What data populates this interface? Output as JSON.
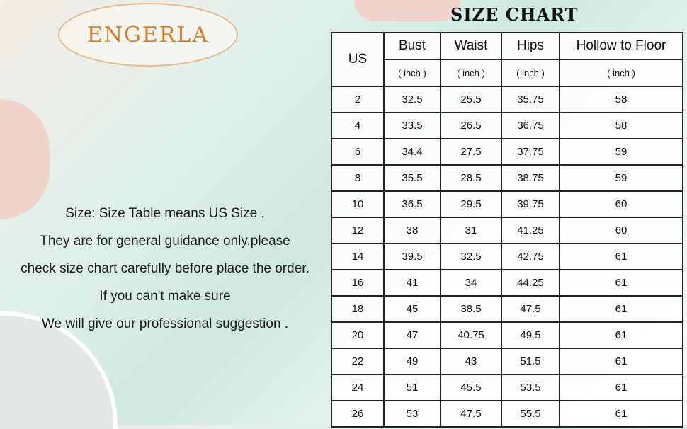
{
  "brand": "ENGERLA",
  "title": "SIZE CHART",
  "notes": [
    "Size: Size Table means US Size ,",
    "They are for general guidance only.please",
    "check size chart carefully before place the order.",
    "If you can't make sure",
    "We will give our professional suggestion ."
  ],
  "table": {
    "headers": [
      "US",
      "Bust",
      "Waist",
      "Hips",
      "Hollow to Floor"
    ],
    "unit": "( inch )",
    "rows": [
      [
        "2",
        "32.5",
        "25.5",
        "35.75",
        "58"
      ],
      [
        "4",
        "33.5",
        "26.5",
        "36.75",
        "58"
      ],
      [
        "6",
        "34.4",
        "27.5",
        "37.75",
        "59"
      ],
      [
        "8",
        "35.5",
        "28.5",
        "38.75",
        "59"
      ],
      [
        "10",
        "36.5",
        "29.5",
        "39.75",
        "60"
      ],
      [
        "12",
        "38",
        "31",
        "41.25",
        "60"
      ],
      [
        "14",
        "39.5",
        "32.5",
        "42.75",
        "61"
      ],
      [
        "16",
        "41",
        "34",
        "44.25",
        "61"
      ],
      [
        "18",
        "45",
        "38.5",
        "47.5",
        "61"
      ],
      [
        "20",
        "47",
        "40.75",
        "49.5",
        "61"
      ],
      [
        "22",
        "49",
        "43",
        "51.5",
        "61"
      ],
      [
        "24",
        "51",
        "45.5",
        "53.5",
        "61"
      ],
      [
        "26",
        "53",
        "47.5",
        "55.5",
        "61"
      ]
    ]
  },
  "colors": {
    "brand": "#d9802e"
  }
}
